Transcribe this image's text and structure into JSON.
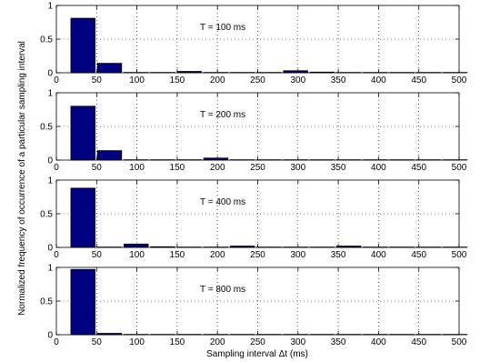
{
  "figure": {
    "xlabel": "Sampling interval Δt (ms)",
    "ylabel": "Normalized frequency of occurrence of a particular sampling interval"
  },
  "chart_data": [
    {
      "type": "bar",
      "annotation": "T = 100 ms",
      "bar_color": "#000080",
      "bin_width": 30,
      "x": [
        33,
        66,
        99,
        132,
        165,
        198,
        231,
        264,
        297,
        330,
        363,
        396,
        429,
        462,
        495
      ],
      "values": [
        0.81,
        0.14,
        0.005,
        0.005,
        0.02,
        0.005,
        0.005,
        0.005,
        0.03,
        0.01,
        0.005,
        0.005,
        0.005,
        0.005,
        0.005
      ],
      "xlim": [
        0,
        500
      ],
      "ylim": [
        0,
        1
      ],
      "xticks": [
        0,
        50,
        100,
        150,
        200,
        250,
        300,
        350,
        400,
        450,
        500
      ],
      "yticks": [
        0,
        0.5,
        1
      ],
      "grid": true
    },
    {
      "type": "bar",
      "annotation": "T = 200 ms",
      "bar_color": "#000080",
      "bin_width": 30,
      "x": [
        33,
        66,
        99,
        132,
        165,
        198,
        231,
        264,
        297,
        330,
        363,
        396,
        429,
        462,
        495
      ],
      "values": [
        0.8,
        0.14,
        0.005,
        0.005,
        0.005,
        0.03,
        0.005,
        0.005,
        0.005,
        0.005,
        0.005,
        0.005,
        0.005,
        0.005,
        0.005
      ],
      "xlim": [
        0,
        500
      ],
      "ylim": [
        0,
        1
      ],
      "xticks": [
        0,
        50,
        100,
        150,
        200,
        250,
        300,
        350,
        400,
        450,
        500
      ],
      "yticks": [
        0,
        0.5,
        1
      ],
      "grid": true
    },
    {
      "type": "bar",
      "annotation": "T = 400 ms",
      "bar_color": "#000080",
      "bin_width": 30,
      "x": [
        33,
        66,
        99,
        132,
        165,
        198,
        231,
        264,
        297,
        330,
        363,
        396,
        429,
        462,
        495
      ],
      "values": [
        0.88,
        0.005,
        0.05,
        0.01,
        0.005,
        0.005,
        0.02,
        0.005,
        0.005,
        0.005,
        0.02,
        0.005,
        0.005,
        0.005,
        0.005
      ],
      "xlim": [
        0,
        500
      ],
      "ylim": [
        0,
        1
      ],
      "xticks": [
        0,
        50,
        100,
        150,
        200,
        250,
        300,
        350,
        400,
        450,
        500
      ],
      "yticks": [
        0,
        0.5,
        1
      ],
      "grid": true
    },
    {
      "type": "bar",
      "annotation": "T = 800 ms",
      "bar_color": "#000080",
      "bin_width": 30,
      "x": [
        33,
        66,
        99,
        132,
        165,
        198,
        231,
        264,
        297,
        330,
        363,
        396,
        429,
        462,
        495
      ],
      "values": [
        0.97,
        0.02,
        0.005,
        0.005,
        0.005,
        0.005,
        0.005,
        0.005,
        0.005,
        0.005,
        0.005,
        0.005,
        0.005,
        0.005,
        0.005
      ],
      "xlim": [
        0,
        500
      ],
      "ylim": [
        0,
        1
      ],
      "xticks": [
        0,
        50,
        100,
        150,
        200,
        250,
        300,
        350,
        400,
        450,
        500
      ],
      "yticks": [
        0,
        0.5,
        1
      ],
      "grid": true
    }
  ]
}
